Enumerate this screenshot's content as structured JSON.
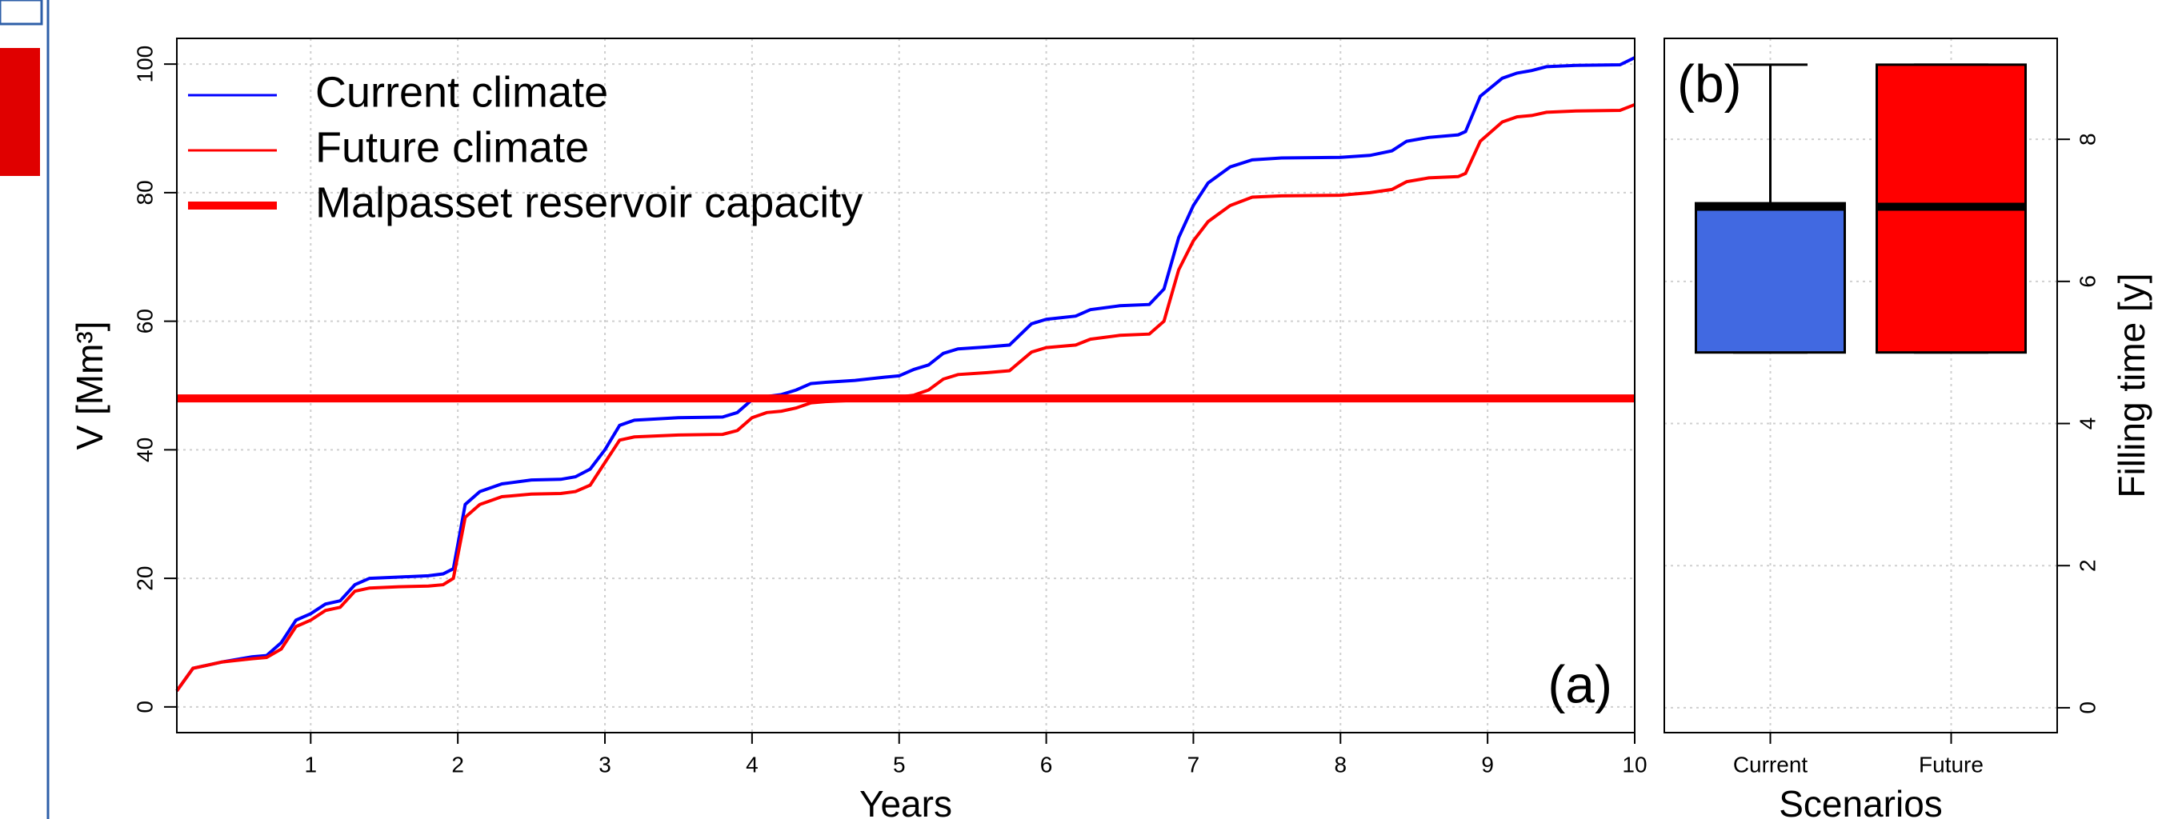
{
  "chart_data": [
    {
      "type": "line",
      "annotation": "(a)",
      "x_label": "Years",
      "y_label": "V [Mm³]",
      "xlim": [
        0.09,
        10
      ],
      "ylim": [
        -4,
        104
      ],
      "xticks": [
        1,
        2,
        3,
        4,
        5,
        6,
        7,
        8,
        9,
        10
      ],
      "yticks": [
        0,
        20,
        40,
        60,
        80,
        100
      ],
      "grid": true,
      "legend": "top-left",
      "x": [
        0.09,
        0.2,
        0.4,
        0.6,
        0.7,
        0.8,
        0.9,
        1.0,
        1.1,
        1.2,
        1.3,
        1.4,
        1.6,
        1.8,
        1.9,
        1.97,
        2.05,
        2.15,
        2.3,
        2.5,
        2.7,
        2.8,
        2.9,
        3.0,
        3.1,
        3.2,
        3.5,
        3.8,
        3.9,
        4.0,
        4.1,
        4.2,
        4.3,
        4.4,
        4.5,
        4.7,
        4.9,
        5.0,
        5.1,
        5.2,
        5.3,
        5.4,
        5.6,
        5.75,
        5.9,
        6.0,
        6.2,
        6.3,
        6.5,
        6.7,
        6.8,
        6.9,
        7.0,
        7.1,
        7.25,
        7.4,
        7.6,
        8.0,
        8.2,
        8.35,
        8.45,
        8.6,
        8.8,
        8.85,
        8.95,
        9.1,
        9.2,
        9.3,
        9.4,
        9.6,
        9.9,
        10
      ],
      "series": [
        {
          "name": "Current climate",
          "color": "#0000ff",
          "values": [
            2.5,
            6,
            7,
            7.8,
            8,
            10,
            13.5,
            14.5,
            16,
            16.5,
            19,
            20,
            20.2,
            20.4,
            20.7,
            21.5,
            31.5,
            33.5,
            34.7,
            35.3,
            35.4,
            35.8,
            37,
            40,
            43.8,
            44.6,
            45,
            45.1,
            45.8,
            47.8,
            48.3,
            48.6,
            49.3,
            50.3,
            50.5,
            50.8,
            51.3,
            51.5,
            52.5,
            53.2,
            55,
            55.7,
            56,
            56.3,
            59.6,
            60.3,
            60.8,
            61.8,
            62.4,
            62.6,
            65,
            73,
            78,
            81.5,
            84,
            85.1,
            85.4,
            85.5,
            85.8,
            86.5,
            88,
            88.6,
            89,
            89.5,
            95,
            97.8,
            98.6,
            99,
            99.6,
            99.8,
            99.9,
            101
          ]
        },
        {
          "name": "Future climate",
          "color": "#ff0000",
          "values": [
            2.5,
            6,
            7,
            7.5,
            7.7,
            9,
            12.5,
            13.5,
            15,
            15.5,
            18,
            18.5,
            18.7,
            18.8,
            19,
            20,
            29.5,
            31.5,
            32.7,
            33.1,
            33.2,
            33.5,
            34.5,
            38,
            41.5,
            42,
            42.3,
            42.4,
            43,
            45,
            45.8,
            46,
            46.5,
            47.3,
            47.5,
            47.7,
            47.9,
            48.2,
            48.5,
            49.3,
            51,
            51.7,
            52,
            52.3,
            55.2,
            55.9,
            56.3,
            57.2,
            57.8,
            58,
            60,
            68,
            72.5,
            75.5,
            78,
            79.3,
            79.5,
            79.6,
            80,
            80.5,
            81.7,
            82.3,
            82.5,
            83,
            88,
            91,
            91.8,
            92,
            92.5,
            92.7,
            92.8,
            93.7
          ]
        }
      ],
      "reference_line": {
        "name": "Malpasset reservoir capacity",
        "value": 48,
        "color": "#ff0000"
      }
    },
    {
      "type": "box",
      "annotation": "(b)",
      "x_label": "Scenarios",
      "y_label": "Filling time [y]",
      "categories": [
        "Current",
        "Future"
      ],
      "y2lim": [
        -0.35,
        9.42
      ],
      "y2ticks": [
        0,
        2,
        4,
        6,
        8
      ],
      "grid": true,
      "boxes": [
        {
          "min": 5,
          "q1": 5,
          "median": 7.05,
          "q3": 7.1,
          "max": 9.05,
          "color": "#4169e1"
        },
        {
          "min": 5,
          "q1": 5,
          "median": 7.05,
          "q3": 9.05,
          "max": 9.05,
          "color": "#ff0000"
        }
      ]
    }
  ]
}
